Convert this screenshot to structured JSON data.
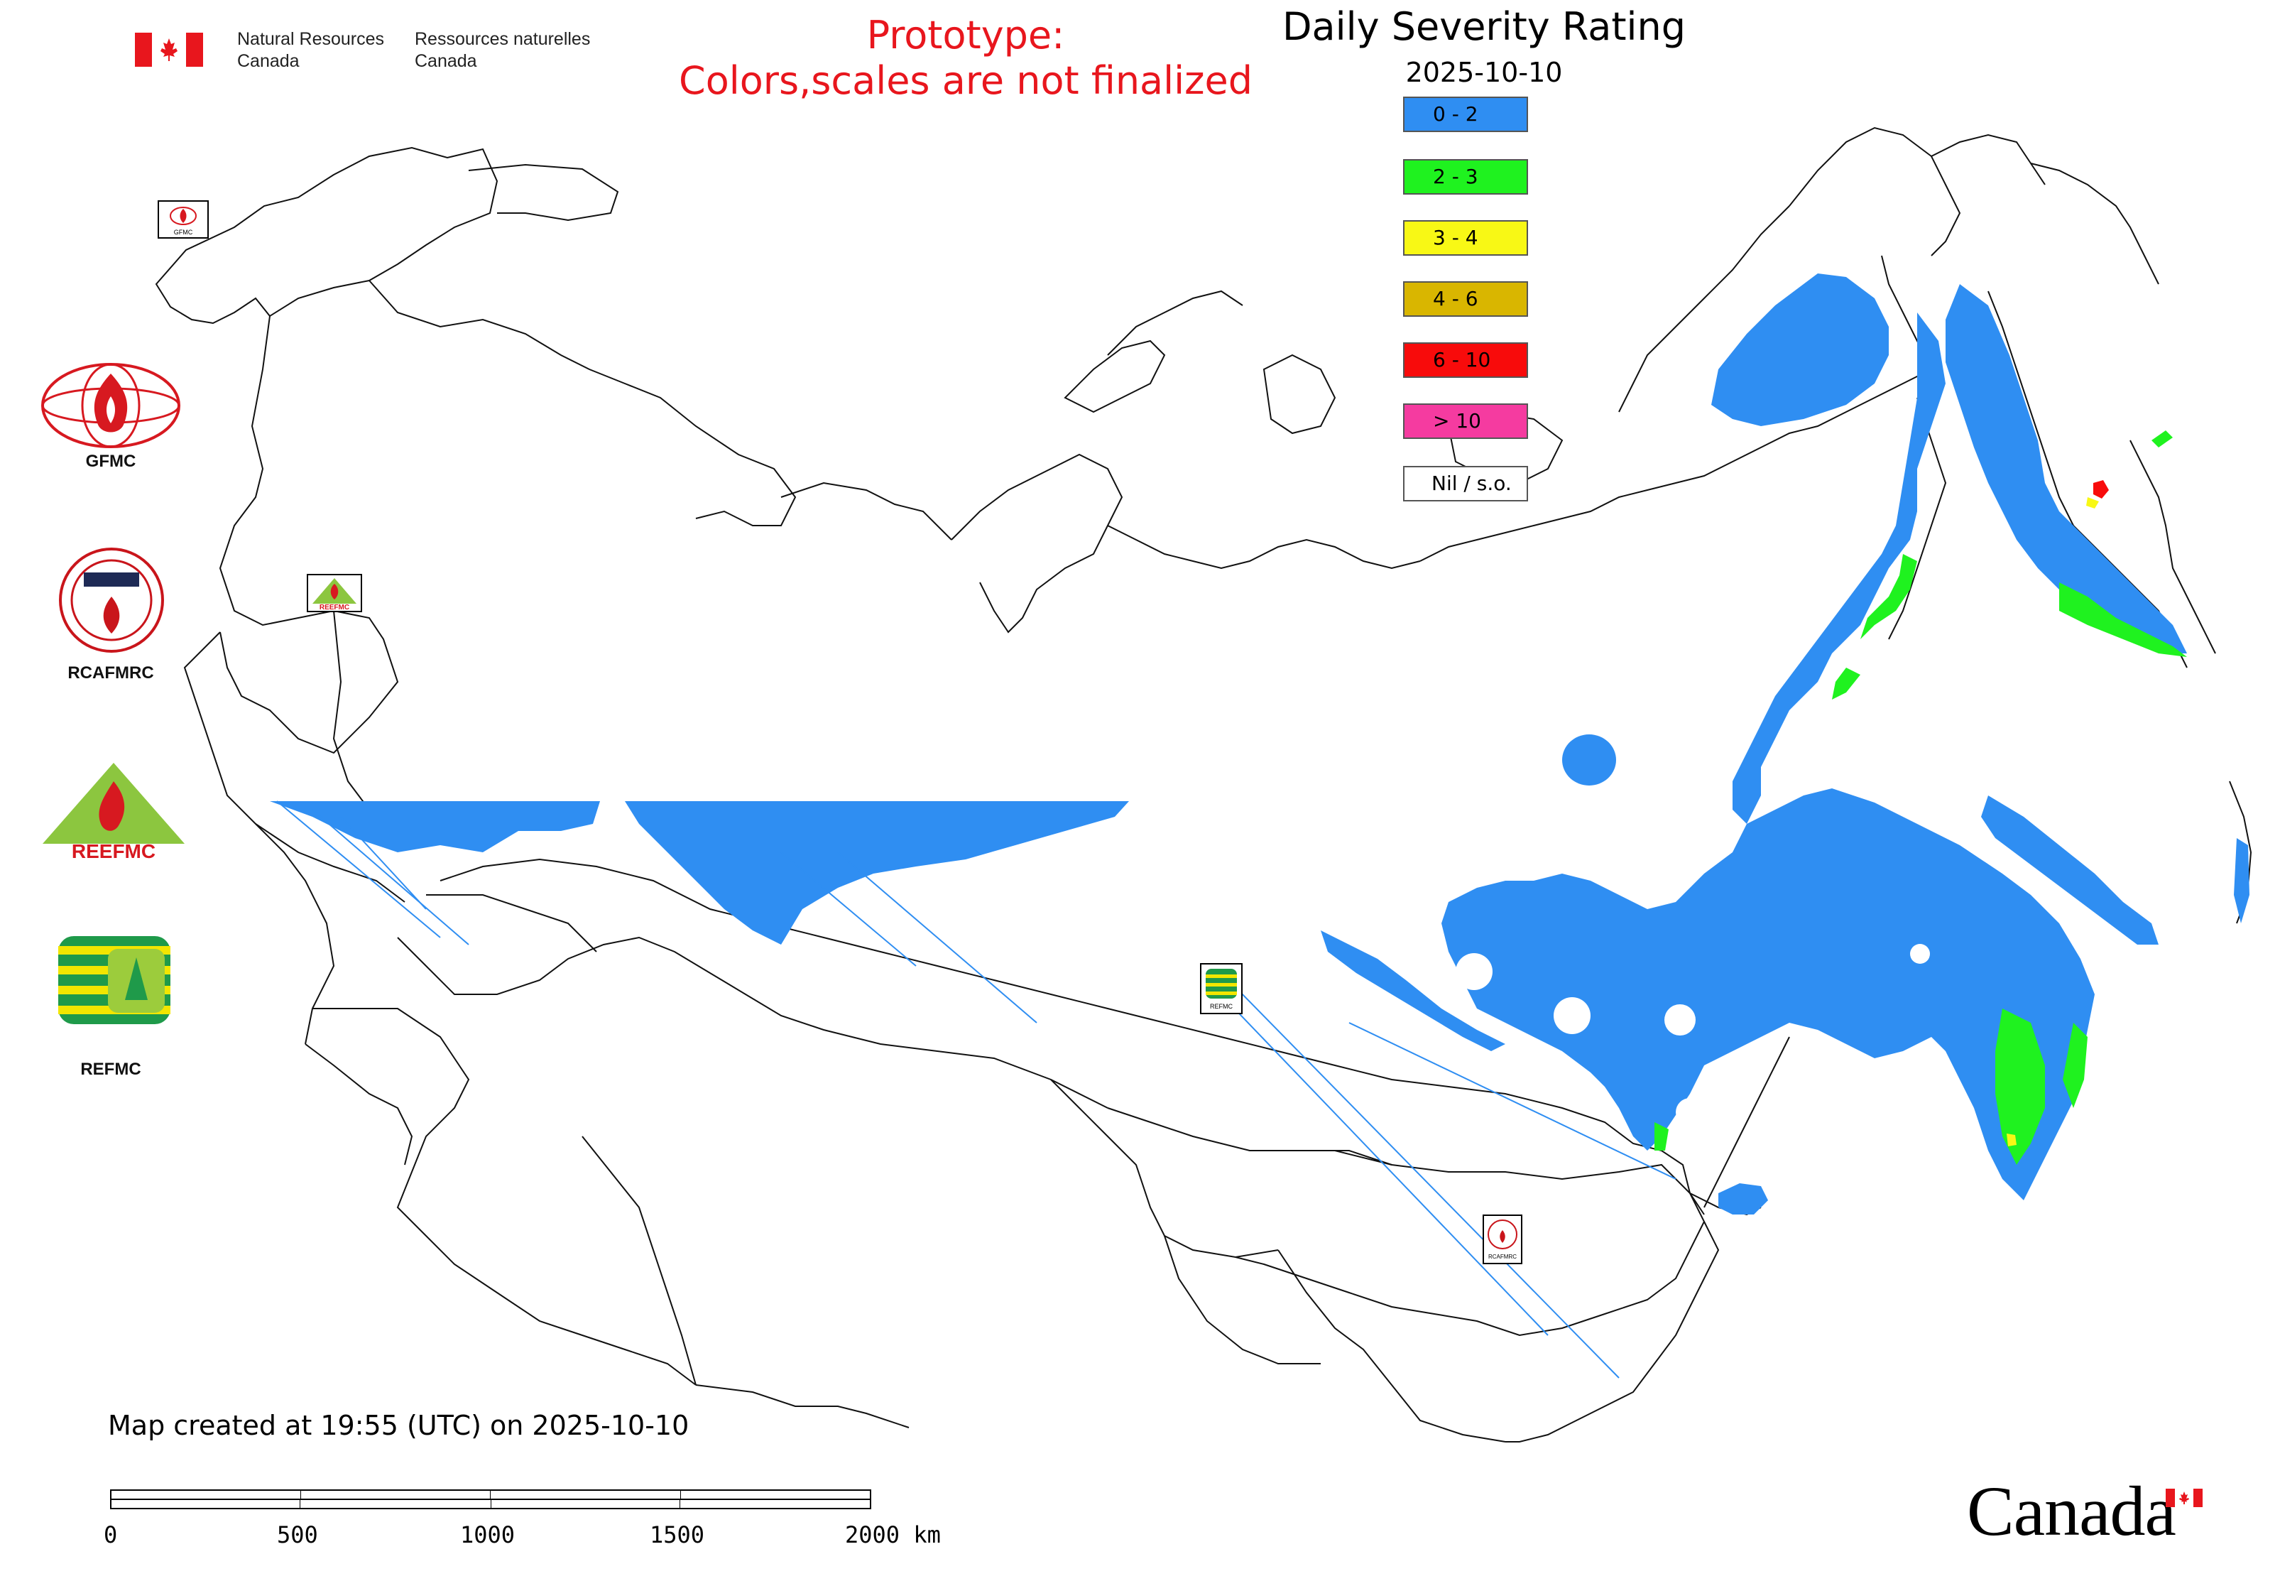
{
  "agency": {
    "name_en_line1": "Natural Resources",
    "name_en_line2": "Canada",
    "name_fr_line1": "Ressources naturelles",
    "name_fr_line2": "Canada"
  },
  "notice": {
    "line1": "Prototype:",
    "line2": "Colors,scales are not finalized",
    "color": "#e8161d"
  },
  "legend": {
    "title": "Daily Severity Rating",
    "date": "2025-10-10",
    "classes": [
      {
        "label": "0 - 2",
        "color": "#2f8ef2"
      },
      {
        "label": "2 - 3",
        "color": "#1ff21f"
      },
      {
        "label": "3 - 4",
        "color": "#f8f815"
      },
      {
        "label": "4 - 6",
        "color": "#d9b600"
      },
      {
        "label": "6 - 10",
        "color": "#f80b0b"
      },
      {
        "label": "> 10",
        "color": "#f53ba0"
      },
      {
        "label": "Nil / s.o.",
        "color": "#ffffff"
      }
    ]
  },
  "organizations": [
    {
      "label": "GFMC",
      "icon": "gfmc-logo"
    },
    {
      "label": "RCAFMRC",
      "icon": "rcafmrc-logo"
    },
    {
      "label": "",
      "icon": "reefmc-logo",
      "logo_text": "REEFMC"
    },
    {
      "label": "REFMC",
      "icon": "refmc-logo"
    }
  ],
  "map_markers": [
    {
      "icon": "gfmc-marker",
      "caption": "GFMC"
    },
    {
      "icon": "reefmc-marker",
      "caption": "REEFMC"
    },
    {
      "icon": "refmc-marker",
      "caption": "REFMC"
    },
    {
      "icon": "rcafmrc-marker",
      "caption": "RCAFMRC"
    }
  ],
  "footer": {
    "created": "Map created at 19:55 (UTC) on 2025-10-10"
  },
  "scale_bar": {
    "ticks": [
      "0",
      "500",
      "1000",
      "1500",
      "2000 km"
    ]
  },
  "wordmark": "Canada"
}
